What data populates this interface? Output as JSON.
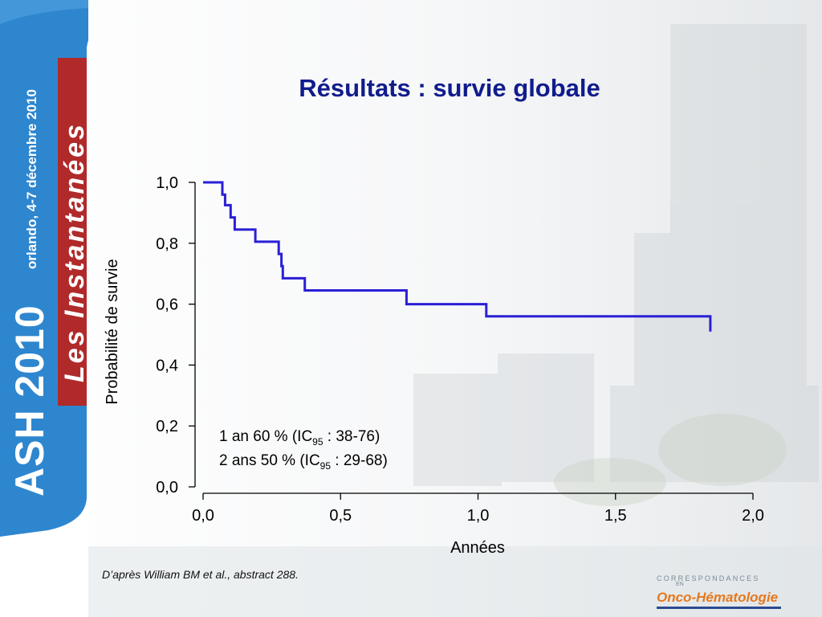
{
  "slide": {
    "title": "Résultats : survie globale",
    "source": "D’après William BM et al., abstract 288."
  },
  "banner": {
    "conference": "ASH 2010",
    "location_dates": "orlando, 4-7 décembre 2010",
    "series": "Les Instantanées"
  },
  "logo": {
    "top_text": "CORRESPONDANCES",
    "small_text": "EN",
    "bottom_text": "Onco-Hématologie"
  },
  "annotations": {
    "line1_pre": "1 an 60 % (IC",
    "line1_sub": "95",
    "line1_post": " : 38-76)",
    "line2_pre": "2 ans 50 % (IC",
    "line2_sub": "95",
    "line2_post": " : 29-68)"
  },
  "colors": {
    "title": "#101c8c",
    "curve": "#2a1fd6",
    "banner_blue": "#2e86cf",
    "banner_red": "#b02a2a"
  },
  "chart_data": {
    "type": "line",
    "step": true,
    "xlabel": "Années",
    "ylabel": "Probabilité de survie",
    "xlim": [
      0,
      2
    ],
    "ylim": [
      0,
      1
    ],
    "xticks": [
      "0,0",
      "0,5",
      "1,0",
      "1,5",
      "2,0"
    ],
    "yticks": [
      "0,0",
      "0,2",
      "0,4",
      "0,6",
      "0,8",
      "1,0"
    ],
    "series": [
      {
        "x": [
          0,
          0.07,
          0.07,
          0.08,
          0.08,
          0.1,
          0.1,
          0.115,
          0.115,
          0.19,
          0.19,
          0.275,
          0.275,
          0.285,
          0.285,
          0.29,
          0.29,
          0.37,
          0.37,
          0.74,
          0.74,
          1.03,
          1.03,
          1.845,
          1.845
        ],
        "y": [
          1.0,
          1.0,
          0.96,
          0.96,
          0.925,
          0.925,
          0.885,
          0.885,
          0.845,
          0.845,
          0.805,
          0.805,
          0.765,
          0.765,
          0.725,
          0.725,
          0.685,
          0.685,
          0.645,
          0.645,
          0.6,
          0.6,
          0.56,
          0.56,
          0.51
        ]
      }
    ]
  }
}
